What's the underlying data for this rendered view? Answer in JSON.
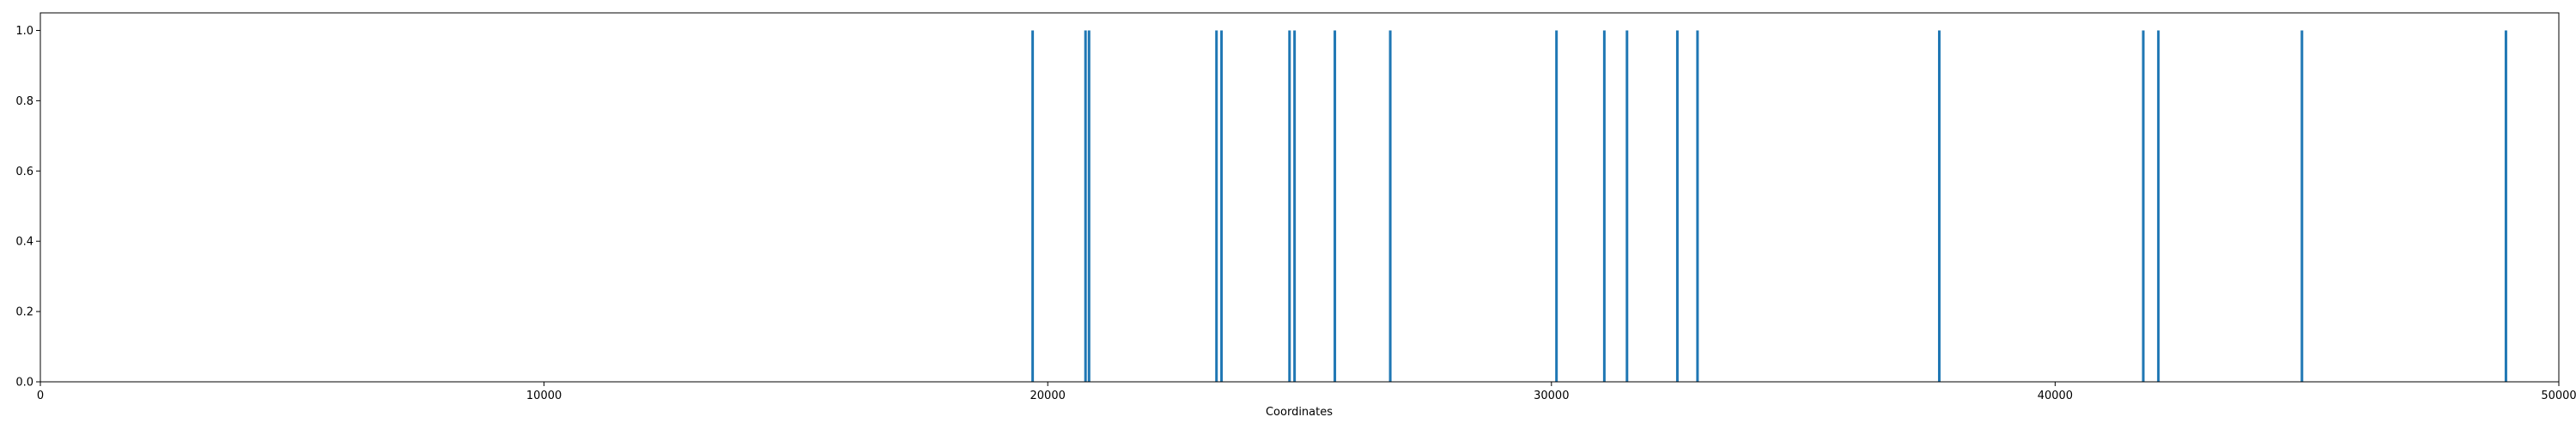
{
  "chart_data": {
    "type": "bar",
    "title": "",
    "xlabel": "Coordinates",
    "ylabel": "",
    "xlim": [
      0,
      50000
    ],
    "ylim": [
      0.0,
      1.05
    ],
    "xticks": [
      0,
      10000,
      20000,
      30000,
      40000,
      50000
    ],
    "xtick_labels": [
      "0",
      "10000",
      "20000",
      "30000",
      "40000",
      "50000"
    ],
    "yticks": [
      0.0,
      0.2,
      0.4,
      0.6,
      0.8,
      1.0
    ],
    "ytick_labels": [
      "0.0",
      "0.2",
      "0.4",
      "0.6",
      "0.8",
      "1.0"
    ],
    "grid": false,
    "legend": "none",
    "bar_color": "#1f77b4",
    "x": [
      19700,
      20750,
      20820,
      23350,
      23450,
      24800,
      24900,
      25700,
      26800,
      30100,
      31050,
      31500,
      32500,
      32900,
      37700,
      41750,
      42050,
      44900,
      48950
    ],
    "values": [
      1,
      1,
      1,
      1,
      1,
      1,
      1,
      1,
      1,
      1,
      1,
      1,
      1,
      1,
      1,
      1,
      1,
      1,
      1
    ]
  }
}
